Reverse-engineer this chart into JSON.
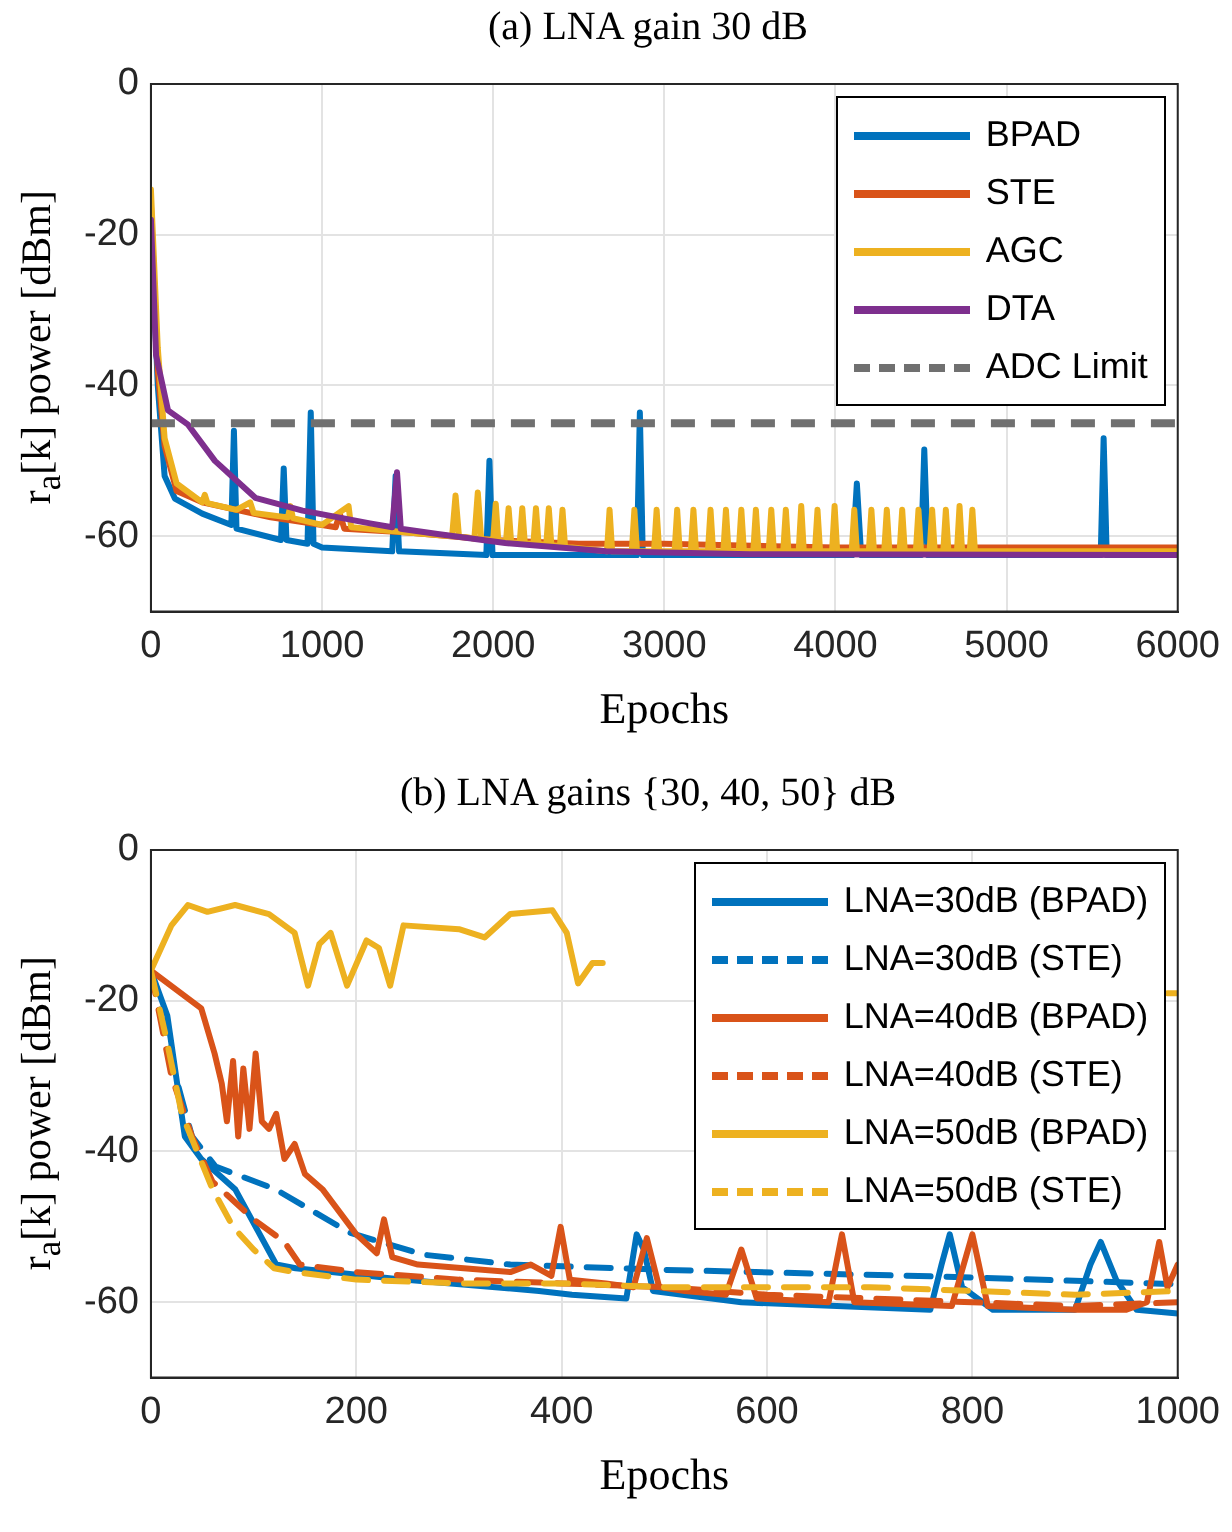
{
  "chart_data": [
    {
      "type": "line",
      "title": "(a) LNA gain 30 dB",
      "xlabel": "Epochs",
      "ylabel": "r$_{a}$[k] power [dBm]",
      "xlim": [
        0,
        6000
      ],
      "ylim": [
        -70,
        0
      ],
      "xticks": [
        0,
        1000,
        2000,
        3000,
        4000,
        5000,
        6000
      ],
      "yticks": [
        -60,
        -40,
        -20,
        0
      ],
      "grid": true,
      "legend": "top right",
      "series": [
        {
          "name": "BPAD",
          "color": "#0072bd",
          "line_style": "solid",
          "x": [
            0,
            40,
            80,
            140,
            300,
            470,
            485,
            500,
            760,
            776,
            792,
            915,
            934,
            950,
            1000,
            1410,
            1430,
            1450,
            1960,
            1978,
            1996,
            2500,
            2840,
            2857,
            2874,
            3500,
            4100,
            4125,
            4150,
            4500,
            4519,
            4540,
            5550,
            5567,
            5585,
            6000
          ],
          "values": [
            -18,
            -40,
            -52,
            -55,
            -57,
            -58.5,
            -46,
            -59,
            -60.5,
            -51,
            -60.5,
            -61,
            -43.6,
            -61,
            -61.5,
            -62,
            -52,
            -62,
            -62.5,
            -50,
            -62.5,
            -62.5,
            -62.5,
            -43.6,
            -62.5,
            -62.5,
            -62.5,
            -53,
            -62.5,
            -62.5,
            -48.5,
            -62.5,
            -62.5,
            -47,
            -62.5,
            -62.5
          ]
        },
        {
          "name": "STE",
          "color": "#d95319",
          "line_style": "solid",
          "x": [
            0,
            40,
            80,
            150,
            300,
            500,
            700,
            1000,
            1080,
            1103,
            1130,
            1500,
            2000,
            2500,
            3000,
            4000,
            5000,
            6000
          ],
          "values": [
            -16,
            -38,
            -48,
            -54,
            -55.5,
            -56.5,
            -57.5,
            -58.5,
            -58.8,
            -57,
            -59,
            -59.5,
            -60.5,
            -61,
            -61,
            -61.5,
            -61.5,
            -61.5
          ]
        },
        {
          "name": "AGC",
          "color": "#edb120",
          "line_style": "solid",
          "x": [
            0,
            40,
            80,
            150,
            300,
            315,
            330,
            500,
            580,
            600,
            800,
            815,
            830,
            1000,
            1155,
            1170,
            1500,
            1760,
            1780,
            1800,
            1890,
            1910,
            1930,
            2000,
            2015,
            2030,
            2075,
            2090,
            2105,
            2155,
            2170,
            2185,
            2235,
            2250,
            2265,
            2310,
            2325,
            2340,
            2390,
            2405,
            2420,
            2665,
            2680,
            2695,
            2810,
            2825,
            2840,
            2940,
            2955,
            2970,
            3060,
            3075,
            3090,
            3155,
            3170,
            3185,
            3255,
            3270,
            3285,
            3345,
            3360,
            3375,
            3435,
            3450,
            3465,
            3520,
            3535,
            3550,
            3610,
            3625,
            3640,
            3695,
            3710,
            3725,
            3785,
            3800,
            3815,
            3880,
            3895,
            3910,
            3980,
            3995,
            4010,
            4095,
            4110,
            4125,
            4195,
            4210,
            4225,
            4285,
            4300,
            4315,
            4375,
            4390,
            4405,
            4470,
            4485,
            4500,
            4550,
            4565,
            4580,
            4630,
            4645,
            4660,
            4710,
            4725,
            4740,
            4785,
            4800,
            4815,
            6000
          ],
          "values": [
            -14,
            -35,
            -47,
            -53,
            -55.5,
            -54.5,
            -55.6,
            -56.5,
            -55.5,
            -56.9,
            -57.5,
            -56,
            -57.6,
            -58.5,
            -56,
            -58.8,
            -59.5,
            -60,
            -54.6,
            -60,
            -60.3,
            -54.2,
            -60.4,
            -60.5,
            -55.7,
            -60.6,
            -60.7,
            -56.3,
            -60.8,
            -60.9,
            -56.3,
            -61,
            -61,
            -56.3,
            -61,
            -61.2,
            -56.3,
            -61.2,
            -61.3,
            -56.5,
            -61.4,
            -62,
            -56.5,
            -62,
            -62,
            -56.5,
            -62,
            -62,
            -56.5,
            -62,
            -62,
            -56.5,
            -62,
            -62,
            -56.5,
            -62,
            -62,
            -56.5,
            -62,
            -62,
            -56.5,
            -62,
            -62,
            -56.5,
            -62,
            -62,
            -56.5,
            -62,
            -62,
            -56.5,
            -62,
            -62,
            -56.5,
            -62,
            -62,
            -56,
            -62,
            -62,
            -56.5,
            -62,
            -62,
            -56,
            -62,
            -62,
            -56.5,
            -62,
            -62,
            -56.5,
            -62,
            -62,
            -56.5,
            -62,
            -62,
            -56.5,
            -62,
            -62,
            -56.5,
            -62,
            -62,
            -56.5,
            -62,
            -62,
            -56.5,
            -62,
            -62,
            -56,
            -62,
            -62,
            -56.5,
            -62,
            -62
          ]
        },
        {
          "name": "DTA",
          "color": "#7e2f8e",
          "line_style": "solid",
          "x": [
            0,
            30,
            100,
            217,
            374,
            610,
            886,
            1280,
            1410,
            1438,
            1460,
            1675,
            2070,
            2660,
            3500,
            6000
          ],
          "values": [
            -18,
            -36,
            -43.3,
            -45.2,
            -50,
            -54.9,
            -56.6,
            -58.3,
            -58.8,
            -51.5,
            -59,
            -59.7,
            -60.9,
            -62,
            -62.4,
            -62.5
          ]
        }
      ],
      "ref_lines": [
        {
          "axis": "y",
          "value": -45,
          "label": "ADC Limit",
          "color": "#707070",
          "line_style": "dashed"
        }
      ]
    },
    {
      "type": "line",
      "title": "(b) LNA gains {30, 40, 50} dB",
      "xlabel": "Epochs",
      "ylabel": "r$_{a}$[k] power [dBm]",
      "xlim": [
        0,
        1000
      ],
      "ylim": [
        -70,
        0
      ],
      "xticks": [
        0,
        200,
        400,
        600,
        800,
        1000
      ],
      "yticks": [
        -60,
        -40,
        -20,
        0
      ],
      "grid": true,
      "legend": "top right",
      "series": [
        {
          "name": "LNA=30dB (BPAD)",
          "color": "#0072bd",
          "line_style": "solid",
          "x": [
            0,
            16,
            33,
            49,
            82,
            122,
            141,
            246,
            378,
            410,
            463,
            473,
            480,
            489,
            575,
            759,
            770,
            778,
            790,
            820,
            900,
            915,
            925,
            940,
            960,
            1000
          ],
          "values": [
            -16,
            -22,
            -38,
            -41,
            -45,
            -55,
            -55.5,
            -57,
            -58.5,
            -59,
            -59.5,
            -51,
            -53,
            -58.5,
            -60,
            -61,
            -55,
            -51,
            -58,
            -61,
            -61,
            -55,
            -52,
            -57,
            -61,
            -61.5
          ]
        },
        {
          "name": "LNA=30dB (STE)",
          "color": "#0072bd",
          "line_style": "dashed",
          "x": [
            0,
            20,
            40,
            63,
            121,
            194,
            266,
            350,
            500,
            770,
            1000
          ],
          "values": [
            -16,
            -28,
            -38,
            -42,
            -45,
            -50.8,
            -53.7,
            -55,
            -55.7,
            -56.6,
            -57.6
          ]
        },
        {
          "name": "LNA=40dB (BPAD)",
          "color": "#d95319",
          "line_style": "solid",
          "x": [
            0,
            49,
            62,
            69,
            74,
            80,
            85,
            90,
            96,
            102,
            108,
            115,
            122,
            130,
            140,
            150,
            167,
            200,
            220,
            227,
            235,
            260,
            350,
            370,
            390,
            399,
            408,
            443,
            470,
            483,
            495,
            520,
            560,
            575,
            590,
            660,
            673,
            685,
            780,
            800,
            815,
            900,
            950,
            970,
            982,
            990,
            1000
          ],
          "values": [
            -16,
            -21,
            -27,
            -31,
            -36,
            -28,
            -38,
            -29,
            -37,
            -27,
            -36,
            -37,
            -35,
            -41,
            -39,
            -43,
            -45,
            -51,
            -53.5,
            -49,
            -54,
            -55,
            -56,
            -55,
            -56.5,
            -50,
            -57,
            -57.5,
            -58,
            -51.5,
            -58,
            -58.5,
            -59,
            -53,
            -59.5,
            -60,
            -51,
            -60,
            -60.5,
            -51,
            -60.5,
            -61,
            -61,
            -60,
            -52,
            -58,
            -55
          ]
        },
        {
          "name": "LNA=40dB (STE)",
          "color": "#d95319",
          "line_style": "dashed",
          "x": [
            0,
            20,
            40,
            60,
            100,
            130,
            145,
            200,
            300,
            400,
            500,
            600,
            700,
            800,
            900,
            1000
          ],
          "values": [
            -16,
            -30,
            -38,
            -44,
            -49,
            -52,
            -55,
            -56,
            -57,
            -57.5,
            -58,
            -59,
            -59.5,
            -60,
            -60.5,
            -60
          ]
        },
        {
          "name": "LNA=50dB (BPAD)",
          "color": "#edb120",
          "line_style": "solid",
          "x": [
            0,
            20,
            36,
            55,
            82,
            115,
            140,
            153,
            164,
            175,
            191,
            210,
            222,
            233,
            246,
            300,
            325,
            350,
            391,
            405,
            416,
            430,
            440,
            700,
            990,
            1000
          ],
          "values": [
            -16,
            -10,
            -7.3,
            -8.2,
            -7.3,
            -8.5,
            -11,
            -18,
            -12.5,
            -11,
            -18,
            -12,
            -13,
            -18,
            -10,
            -10.5,
            -11.6,
            -8.5,
            -8,
            -11,
            -17.7,
            -15,
            -15,
            null,
            -19,
            -19
          ]
        },
        {
          "name": "LNA=50dB (STE)",
          "color": "#edb120",
          "line_style": "dashed",
          "x": [
            0,
            15,
            30,
            45,
            60,
            80,
            100,
            120,
            140,
            200,
            300,
            400,
            500,
            600,
            700,
            800,
            900,
            1000
          ],
          "values": [
            -16,
            -25,
            -35,
            -40,
            -45,
            -50,
            -53,
            -55.5,
            -56,
            -57,
            -57.5,
            -57.5,
            -58,
            -58,
            -58,
            -58.5,
            -59,
            -58.5
          ]
        }
      ]
    }
  ]
}
